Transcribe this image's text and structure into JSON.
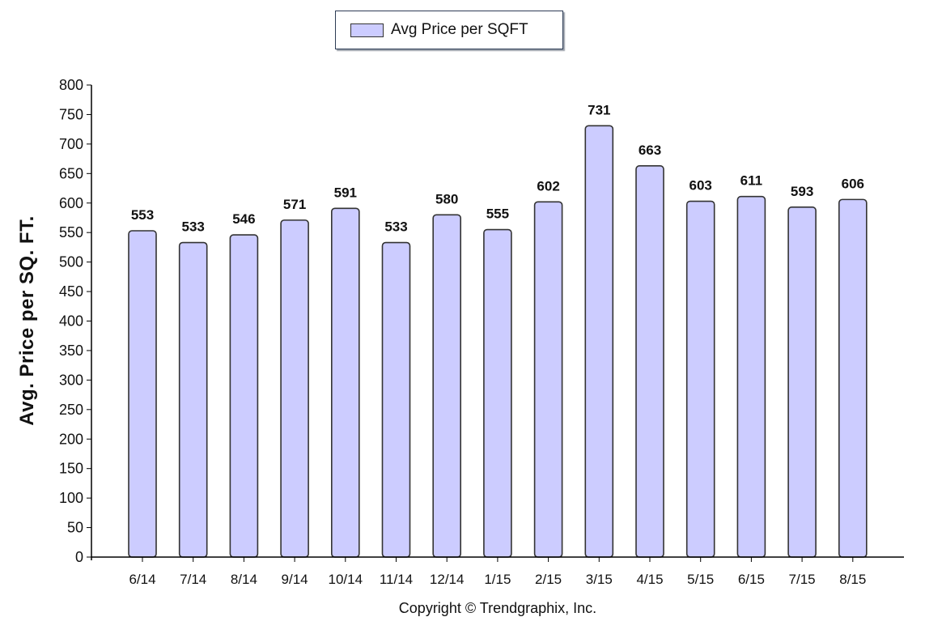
{
  "chart_data": {
    "type": "bar",
    "categories": [
      "6/14",
      "7/14",
      "8/14",
      "9/14",
      "10/14",
      "11/14",
      "12/14",
      "1/15",
      "2/15",
      "3/15",
      "4/15",
      "5/15",
      "6/15",
      "7/15",
      "8/15"
    ],
    "series": [
      {
        "name": "Avg Price per SQFT",
        "values": [
          553,
          533,
          546,
          571,
          591,
          533,
          580,
          555,
          602,
          731,
          663,
          603,
          611,
          593,
          606
        ]
      }
    ],
    "ylabel": "Avg. Price per SQ. FT.",
    "xlabel": "",
    "ylim": [
      0,
      800
    ],
    "yticks": [
      0,
      50,
      100,
      150,
      200,
      250,
      300,
      350,
      400,
      450,
      500,
      550,
      600,
      650,
      700,
      750,
      800
    ],
    "legend_position": "top-center",
    "grid": false,
    "data_labels": true,
    "bar_color": "#ccccff"
  },
  "legend": {
    "label": "Avg Price per SQFT"
  },
  "footer": {
    "copyright": "Copyright © Trendgraphix, Inc."
  }
}
